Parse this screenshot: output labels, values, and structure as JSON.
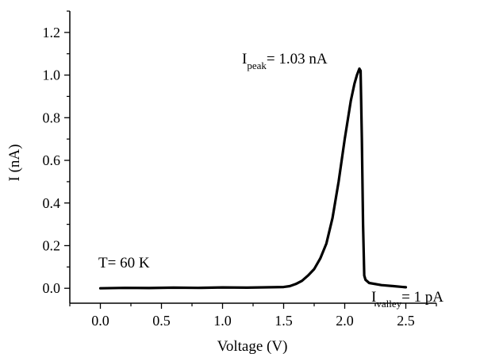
{
  "chart_data": {
    "type": "line",
    "xlabel": "Voltage (V)",
    "ylabel": "I (nA)",
    "xlim": [
      -0.25,
      2.75
    ],
    "ylim": [
      -0.07,
      1.3
    ],
    "xticks": [
      "0.0",
      "0.5",
      "1.0",
      "1.5",
      "2.0",
      "2.5"
    ],
    "yticks": [
      "0.0",
      "0.2",
      "0.4",
      "0.6",
      "0.8",
      "1.0",
      "1.2"
    ],
    "grid": false,
    "series": [
      {
        "x": [
          0.0,
          0.2,
          0.4,
          0.6,
          0.8,
          1.0,
          1.2,
          1.4,
          1.5,
          1.55,
          1.6,
          1.65,
          1.7,
          1.75,
          1.8,
          1.85,
          1.9,
          1.95,
          2.0,
          2.05,
          2.08,
          2.1,
          2.12,
          2.13,
          2.14,
          2.15,
          2.16,
          2.17,
          2.2,
          2.3,
          2.4,
          2.5
        ],
        "y": [
          0.0,
          0.002,
          0.001,
          0.003,
          0.002,
          0.004,
          0.003,
          0.005,
          0.006,
          0.01,
          0.02,
          0.035,
          0.06,
          0.09,
          0.14,
          0.21,
          0.33,
          0.5,
          0.7,
          0.88,
          0.96,
          1.0,
          1.03,
          1.02,
          0.7,
          0.3,
          0.06,
          0.04,
          0.025,
          0.015,
          0.01,
          0.005
        ]
      }
    ],
    "annotations": {
      "peak": {
        "main": "I",
        "sub": "peak",
        "rest": "= 1.03 nA"
      },
      "valley": {
        "main": "I",
        "sub": "valley",
        "rest": "= 1 pA"
      },
      "temp": "T= 60 K"
    }
  }
}
